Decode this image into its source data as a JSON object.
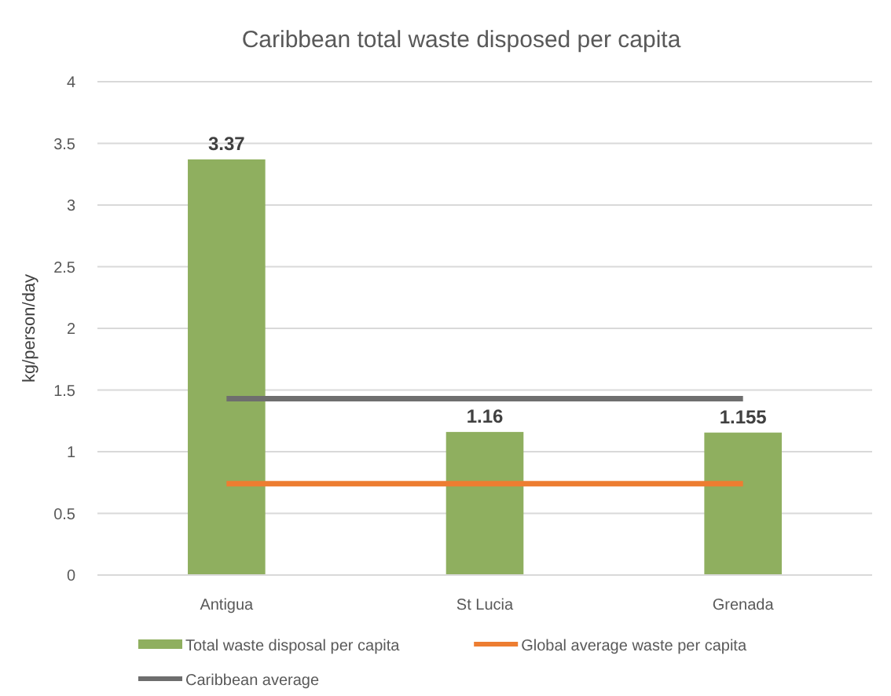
{
  "chart_data": {
    "type": "bar",
    "title": "Caribbean total waste disposed per capita",
    "ylabel": "kg/person/day",
    "categories": [
      "Antigua",
      "St Lucia",
      "Grenada"
    ],
    "series": [
      {
        "name": "Total waste disposal per capita",
        "color": "#8faf5f",
        "values": [
          3.37,
          1.16,
          1.155
        ],
        "value_labels": [
          "3.37",
          "1.16",
          "1.155"
        ]
      },
      {
        "name": "Global average waste per capita",
        "type": "line",
        "color": "#ed7d31",
        "values": [
          0.74,
          0.74,
          0.74
        ]
      },
      {
        "name": "Caribbean average",
        "type": "line",
        "color": "#6e6e6e",
        "values": [
          1.43,
          1.43,
          1.43
        ]
      }
    ],
    "ylim": [
      0,
      4
    ],
    "yticks": [
      0,
      0.5,
      1,
      1.5,
      2,
      2.5,
      3,
      3.5,
      4
    ],
    "grid": "y",
    "legend": "bottom",
    "marker": "none"
  }
}
